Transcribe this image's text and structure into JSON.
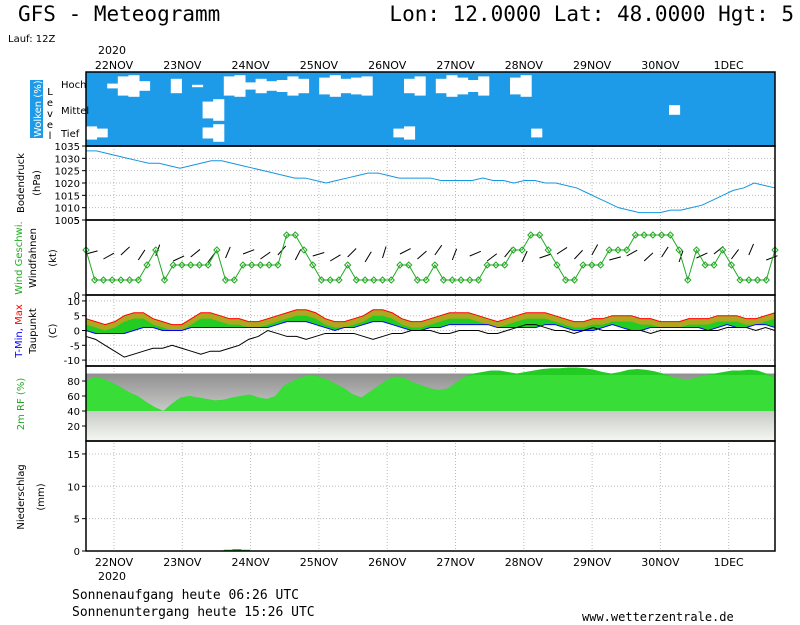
{
  "header": {
    "title": "GFS - Meteogramm",
    "location": "Lon: 12.0000 Lat: 48.0000 Hgt: 5",
    "run": "Lauf: 12Z",
    "year": "2020"
  },
  "footer": {
    "sunrise": "Sonnenaufgang heute 06:26 UTC",
    "sunset": "Sonnenuntergang heute 15:26 UTC",
    "site": "www.wetterzentrale.de"
  },
  "days": [
    "22NOV",
    "23NOV",
    "24NOV",
    "25NOV",
    "26NOV",
    "27NOV",
    "28NOV",
    "29NOV",
    "30NOV",
    "1DEC"
  ],
  "chart_data": [
    {
      "type": "area",
      "panel": "clouds",
      "title": "Wolken (%)",
      "sublabel": "Level",
      "levels": [
        "Hoch",
        "Mittel",
        "Tief"
      ],
      "series": [
        {
          "name": "Hoch",
          "values": [
            0,
            0,
            20,
            80,
            90,
            40,
            0,
            0,
            60,
            0,
            10,
            0,
            0,
            80,
            90,
            30,
            60,
            40,
            50,
            80,
            60,
            0,
            70,
            90,
            60,
            70,
            80,
            0,
            0,
            0,
            60,
            80,
            0,
            60,
            90,
            70,
            50,
            80,
            0,
            0,
            70,
            90,
            0,
            0,
            0,
            0,
            0,
            0,
            0,
            0,
            0,
            0,
            0,
            0,
            0,
            0,
            0,
            0,
            0,
            0,
            0,
            0,
            0,
            0,
            0
          ]
        },
        {
          "name": "Mittel",
          "values": [
            0,
            0,
            0,
            0,
            0,
            0,
            0,
            0,
            0,
            0,
            0,
            70,
            90,
            0,
            0,
            0,
            0,
            0,
            0,
            0,
            0,
            0,
            0,
            0,
            0,
            0,
            0,
            0,
            0,
            0,
            0,
            0,
            0,
            0,
            0,
            0,
            0,
            0,
            0,
            0,
            0,
            0,
            0,
            0,
            0,
            0,
            0,
            0,
            0,
            0,
            0,
            0,
            0,
            0,
            0,
            40,
            0,
            0,
            0,
            0,
            0,
            0,
            0,
            0,
            0
          ]
        },
        {
          "name": "Tief",
          "values": [
            60,
            40,
            0,
            0,
            0,
            0,
            0,
            0,
            0,
            0,
            0,
            50,
            80,
            0,
            0,
            0,
            0,
            0,
            0,
            0,
            0,
            0,
            0,
            0,
            0,
            0,
            0,
            0,
            0,
            40,
            60,
            0,
            0,
            0,
            0,
            0,
            0,
            0,
            0,
            0,
            0,
            0,
            40,
            0,
            0,
            0,
            0,
            0,
            0,
            0,
            0,
            0,
            0,
            0,
            0,
            0,
            0,
            0,
            0,
            0,
            0,
            0,
            0,
            0,
            0
          ]
        }
      ]
    },
    {
      "type": "line",
      "panel": "pressure",
      "title": "Bodendruck",
      "ylabel": "(hPa)",
      "ylim": [
        1005,
        1035
      ],
      "yticks": [
        1005,
        1010,
        1015,
        1020,
        1025,
        1030,
        1035
      ],
      "values": [
        1033,
        1033,
        1032,
        1031,
        1030,
        1029,
        1028,
        1028,
        1027,
        1026,
        1027,
        1028,
        1029,
        1029,
        1028,
        1027,
        1026,
        1025,
        1024,
        1023,
        1022,
        1022,
        1021,
        1020,
        1021,
        1022,
        1023,
        1024,
        1024,
        1023,
        1022,
        1022,
        1022,
        1022,
        1021,
        1021,
        1021,
        1021,
        1022,
        1021,
        1021,
        1020,
        1021,
        1021,
        1020,
        1020,
        1019,
        1018,
        1016,
        1014,
        1012,
        1010,
        1009,
        1008,
        1008,
        1008,
        1009,
        1009,
        1010,
        1011,
        1013,
        1015,
        1017,
        1018,
        1020,
        1019,
        1018
      ]
    },
    {
      "type": "line",
      "panel": "wind",
      "title": "Wind Geschwi.",
      "title2": "Windfahnen",
      "ylabel": "(kt)",
      "ylim": [
        0,
        5
      ],
      "yticks": [
        0,
        5
      ],
      "values": [
        3,
        1,
        1,
        1,
        1,
        1,
        1,
        2,
        3,
        1,
        2,
        2,
        2,
        2,
        2,
        3,
        1,
        1,
        2,
        2,
        2,
        2,
        2,
        4,
        4,
        3,
        2,
        1,
        1,
        1,
        2,
        1,
        1,
        1,
        1,
        1,
        2,
        2,
        1,
        1,
        2,
        1,
        1,
        1,
        1,
        1,
        2,
        2,
        2,
        3,
        3,
        4,
        4,
        3,
        2,
        1,
        1,
        2,
        2,
        2,
        3,
        3,
        3,
        4,
        4,
        4,
        4,
        4,
        3,
        1,
        3,
        2,
        2,
        3,
        2,
        1,
        1,
        1,
        1,
        3
      ]
    },
    {
      "type": "area",
      "panel": "temperature",
      "title": "T-Min, Max",
      "title2": "Taupunkt",
      "ylabel": "(C)",
      "ylim": [
        -12,
        12
      ],
      "yticks": [
        -10,
        -5,
        0,
        5,
        10
      ],
      "series": [
        {
          "name": "T-Max",
          "color": "#ff0000",
          "values": [
            4,
            3,
            2,
            3,
            5,
            6,
            6,
            4,
            3,
            2,
            2,
            4,
            6,
            6,
            5,
            4,
            4,
            3,
            3,
            4,
            5,
            6,
            7,
            7,
            6,
            4,
            3,
            3,
            4,
            5,
            7,
            7,
            6,
            4,
            3,
            3,
            4,
            5,
            6,
            6,
            6,
            5,
            4,
            3,
            4,
            5,
            6,
            6,
            6,
            5,
            4,
            3,
            3,
            4,
            4,
            5,
            5,
            5,
            4,
            4,
            3,
            3,
            3,
            4,
            4,
            4,
            5,
            5,
            5,
            4,
            4,
            5,
            6
          ]
        },
        {
          "name": "T-Min",
          "color": "#0000ff",
          "values": [
            0,
            -1,
            -1,
            -1,
            -1,
            0,
            1,
            1,
            0,
            0,
            0,
            1,
            1,
            1,
            1,
            1,
            1,
            1,
            1,
            1,
            2,
            3,
            3,
            3,
            2,
            1,
            0,
            1,
            1,
            2,
            3,
            3,
            2,
            1,
            0,
            0,
            1,
            1,
            2,
            2,
            2,
            2,
            2,
            1,
            1,
            1,
            1,
            1,
            2,
            2,
            1,
            0,
            0,
            0,
            1,
            2,
            1,
            0,
            0,
            1,
            1,
            1,
            1,
            1,
            1,
            0,
            1,
            2,
            1,
            1,
            2,
            2,
            1
          ]
        },
        {
          "name": "Taupunkt",
          "color": "#000000",
          "values": [
            -2,
            -3,
            -5,
            -7,
            -9,
            -8,
            -7,
            -6,
            -6,
            -5,
            -6,
            -7,
            -8,
            -7,
            -7,
            -6,
            -5,
            -3,
            -2,
            0,
            -1,
            -2,
            -2,
            -3,
            -2,
            -1,
            -1,
            -1,
            -1,
            -2,
            -3,
            -2,
            -1,
            -1,
            0,
            0,
            0,
            -1,
            -1,
            0,
            0,
            0,
            -1,
            -1,
            0,
            1,
            2,
            2,
            1,
            0,
            0,
            -1,
            0,
            1,
            0,
            0,
            0,
            0,
            0,
            -1,
            0,
            0,
            0,
            0,
            0,
            0,
            0,
            1,
            1,
            1,
            0,
            1,
            0
          ]
        }
      ]
    },
    {
      "type": "area",
      "panel": "humidity",
      "title": "2m RF (%)",
      "ylim": [
        0,
        100
      ],
      "yticks": [
        20,
        40,
        60,
        80
      ],
      "values": [
        80,
        85,
        83,
        78,
        72,
        65,
        60,
        52,
        45,
        40,
        50,
        58,
        60,
        58,
        56,
        54,
        55,
        58,
        60,
        62,
        58,
        56,
        60,
        74,
        80,
        85,
        88,
        86,
        82,
        76,
        70,
        62,
        58,
        66,
        74,
        82,
        86,
        84,
        78,
        74,
        70,
        68,
        70,
        78,
        86,
        90,
        92,
        94,
        94,
        92,
        90,
        92,
        94,
        96,
        97,
        97,
        98,
        98,
        97,
        95,
        92,
        90,
        92,
        95,
        96,
        95,
        93,
        90,
        86,
        83,
        82,
        85,
        88,
        90,
        92,
        94,
        94,
        95,
        94,
        90,
        85
      ]
    },
    {
      "type": "bar",
      "panel": "precipitation",
      "title": "Niederschlag",
      "ylabel": "(mm)",
      "ylim": [
        0,
        17
      ],
      "yticks": [
        0,
        5,
        10,
        15
      ],
      "values": [
        0,
        0,
        0,
        0,
        0,
        0,
        0,
        0,
        0,
        0,
        0,
        0,
        0,
        0,
        0,
        0,
        0.2,
        0.3,
        0.2,
        0,
        0,
        0,
        0,
        0,
        0,
        0,
        0,
        0,
        0,
        0,
        0,
        0,
        0,
        0,
        0,
        0,
        0,
        0,
        0,
        0,
        0,
        0,
        0,
        0,
        0,
        0,
        0,
        0,
        0,
        0,
        0,
        0,
        0,
        0,
        0,
        0,
        0,
        0,
        0,
        0,
        0,
        0,
        0,
        0,
        0,
        0,
        0,
        0,
        0,
        0,
        0,
        0,
        0,
        0,
        0,
        0,
        0,
        0,
        0,
        0
      ]
    }
  ]
}
